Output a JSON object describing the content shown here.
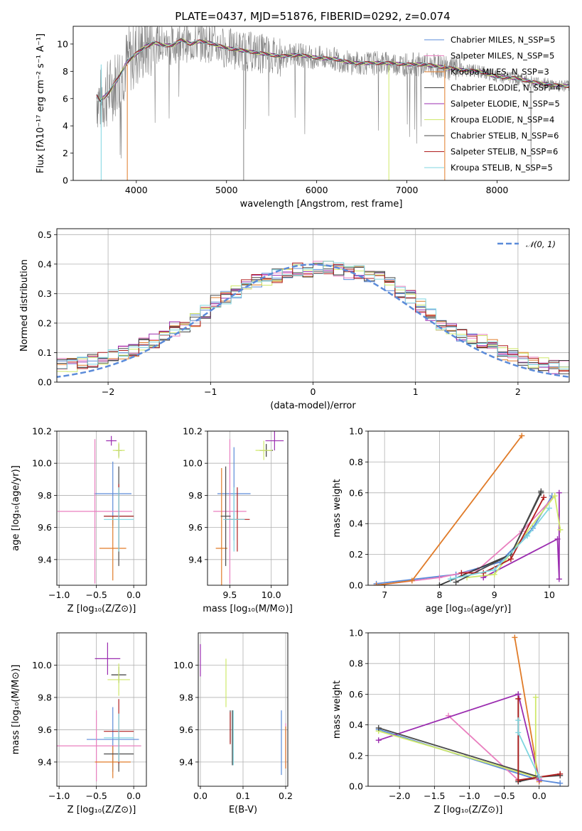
{
  "palette": {
    "Chabrier MILES": "#5b8bd9",
    "Salpeter MILES": "#e97fbf",
    "Kroupa MILES": "#e07b28",
    "Chabrier ELODIE": "#3a3a3a",
    "Salpeter ELODIE": "#9b2db0",
    "Kroupa ELODIE": "#cfe86a",
    "Chabrier STELIB": "#4a4a4a",
    "Salpeter STELIB": "#b01e1e",
    "Kroupa STELIB": "#7fd6e0"
  },
  "spectrum_color": "#808080",
  "normal_color": "#5b8bd9",
  "chart_data": [
    {
      "id": "spectrum",
      "type": "line",
      "title": "PLATE=0437, MJD=51876, FIBERID=0292, z=0.074",
      "xlabel": "wavelength [Angstrom, rest frame]",
      "ylabel": "Flux [fλ10⁻¹⁷ erg cm⁻² s⁻¹ A⁻¹]",
      "xlim": [
        3300,
        8800
      ],
      "ylim": [
        0,
        11.3
      ],
      "xticks": [
        4000,
        5000,
        6000,
        7000,
        8000
      ],
      "yticks": [
        0,
        2,
        4,
        6,
        8,
        10
      ],
      "grid": false,
      "legend_position": "top-right",
      "data_x": [
        3560,
        3600,
        3700,
        3800,
        3900,
        4000,
        4100,
        4200,
        4300,
        4400,
        4500,
        4600,
        4700,
        4800,
        4900,
        5000,
        5200,
        5400,
        5600,
        5800,
        6000,
        6200,
        6400,
        6600,
        6800,
        7000,
        7200,
        7400,
        7600,
        7800,
        8000,
        8200,
        8400,
        8600,
        8800
      ],
      "data_y": [
        6.2,
        5.8,
        6.5,
        7.5,
        8.7,
        9.3,
        9.8,
        10.1,
        9.9,
        9.9,
        10.3,
        10.0,
        10.2,
        10.1,
        9.9,
        9.7,
        9.5,
        9.3,
        9.1,
        9.2,
        9.0,
        8.9,
        8.6,
        8.6,
        8.6,
        8.5,
        8.5,
        8.3,
        8.1,
        8.0,
        7.6,
        7.5,
        7.2,
        7.0,
        6.9
      ],
      "legend": [
        "Chabrier MILES, N_SSP=5",
        "Salpeter MILES, N_SSP=5",
        "Kroupa MILES, N_SSP=3",
        "Chabrier ELODIE, N_SSP=4",
        "Salpeter ELODIE, N_SSP=5",
        "Kroupa ELODIE, N_SSP=4",
        "Chabrier STELIB, N_SSP=6",
        "Salpeter STELIB, N_SSP=6",
        "Kroupa STELIB, N_SSP=5"
      ]
    },
    {
      "id": "residuals",
      "type": "line",
      "xlabel": "(data-model)/error",
      "ylabel": "Normed distribution",
      "xlim": [
        -2.5,
        2.5
      ],
      "ylim": [
        0,
        0.52
      ],
      "xticks": [
        -2,
        -1,
        0,
        1,
        2
      ],
      "yticks": [
        0.0,
        0.1,
        0.2,
        0.3,
        0.4,
        0.5
      ],
      "grid": true,
      "legend_position": "top-right",
      "normal_label": "𝒩(0, 1)",
      "bin_width": 0.1,
      "hist_y": [
        0.02,
        0.03,
        0.04,
        0.05,
        0.06,
        0.06,
        0.06,
        0.06,
        0.07,
        0.08,
        0.09,
        0.1,
        0.11,
        0.13,
        0.14,
        0.16,
        0.18,
        0.19,
        0.21,
        0.24,
        0.27,
        0.29,
        0.31,
        0.33,
        0.34,
        0.35,
        0.36,
        0.37,
        0.38,
        0.38,
        0.39,
        0.39,
        0.38,
        0.37,
        0.37,
        0.36,
        0.35,
        0.33,
        0.31,
        0.29,
        0.26,
        0.23,
        0.2,
        0.18,
        0.16,
        0.15,
        0.14,
        0.12,
        0.1,
        0.09,
        0.08,
        0.07,
        0.06,
        0.05,
        0.05,
        0.04,
        0.03,
        0.03,
        0.02,
        0.02
      ]
    },
    {
      "id": "z-age",
      "type": "scatter",
      "xlabel": "Z [log₁₀(Z/Z⊙)]",
      "ylabel": "age  [log₁₀(age/yr)]",
      "xlim": [
        -1.03,
        0.17
      ],
      "ylim": [
        9.24,
        10.2
      ],
      "xticks": [
        -1.0,
        -0.5,
        0.0
      ],
      "yticks": [
        9.4,
        9.6,
        9.8,
        10.0,
        10.2
      ],
      "grid": true,
      "points": [
        {
          "model": "Chabrier MILES",
          "x": -0.28,
          "y": 9.81,
          "xerr": 0.25,
          "yerr": 0.2
        },
        {
          "model": "Salpeter MILES",
          "x": -0.52,
          "y": 9.7,
          "xerr": 0.5,
          "yerr": 0.45
        },
        {
          "model": "Kroupa MILES",
          "x": -0.28,
          "y": 9.47,
          "xerr": 0.18,
          "yerr": 0.2
        },
        {
          "model": "Chabrier ELODIE",
          "x": -0.2,
          "y": 10.08,
          "xerr": 0.04,
          "yerr": 0.04
        },
        {
          "model": "Salpeter ELODIE",
          "x": -0.3,
          "y": 10.14,
          "xerr": 0.07,
          "yerr": 0.03
        },
        {
          "model": "Kroupa ELODIE",
          "x": -0.2,
          "y": 10.08,
          "xerr": 0.08,
          "yerr": 0.05
        },
        {
          "model": "Chabrier STELIB",
          "x": -0.2,
          "y": 9.67,
          "xerr": 0.2,
          "yerr": 0.31
        },
        {
          "model": "Salpeter STELIB",
          "x": -0.2,
          "y": 9.67,
          "xerr": 0.2,
          "yerr": 0.2
        },
        {
          "model": "Kroupa STELIB",
          "x": -0.2,
          "y": 9.65,
          "xerr": 0.2,
          "yerr": 0.2
        }
      ]
    },
    {
      "id": "mass-age",
      "type": "scatter",
      "xlabel": "mass [log₁₀(M/M⊙)]",
      "ylabel": "",
      "xlim": [
        9.23,
        10.2
      ],
      "ylim": [
        9.24,
        10.2
      ],
      "xticks": [
        9.5,
        10.0
      ],
      "yticks": [
        9.4,
        9.6,
        9.8,
        10.0,
        10.2
      ],
      "grid": true,
      "points": [
        {
          "model": "Chabrier MILES",
          "x": 9.55,
          "y": 9.81,
          "xerr": 0.2,
          "yerr": 0.29
        },
        {
          "model": "Salpeter MILES",
          "x": 9.5,
          "y": 9.7,
          "xerr": 0.2,
          "yerr": 0.45
        },
        {
          "model": "Kroupa MILES",
          "x": 9.4,
          "y": 9.47,
          "xerr": 0.07,
          "yerr": 0.5
        },
        {
          "model": "Chabrier ELODIE",
          "x": 9.94,
          "y": 10.08,
          "xerr": 0.08,
          "yerr": 0.04
        },
        {
          "model": "Salpeter ELODIE",
          "x": 10.04,
          "y": 10.14,
          "xerr": 0.11,
          "yerr": 0.06
        },
        {
          "model": "Kroupa ELODIE",
          "x": 9.91,
          "y": 10.08,
          "xerr": 0.1,
          "yerr": 0.06
        },
        {
          "model": "Chabrier STELIB",
          "x": 9.45,
          "y": 9.67,
          "xerr": 0.06,
          "yerr": 0.31
        },
        {
          "model": "Salpeter STELIB",
          "x": 9.59,
          "y": 9.65,
          "xerr": 0.15,
          "yerr": 0.2
        },
        {
          "model": "Kroupa STELIB",
          "x": 9.55,
          "y": 9.65,
          "xerr": 0.13,
          "yerr": 0.2
        }
      ]
    },
    {
      "id": "age-weight",
      "type": "line",
      "xlabel": "age  [log₁₀(age/yr)]",
      "ylabel": "mass weight",
      "xlim": [
        6.7,
        10.35
      ],
      "ylim": [
        0,
        1.0
      ],
      "xticks": [
        7,
        8,
        9,
        10
      ],
      "yticks": [
        0.0,
        0.2,
        0.4,
        0.6,
        0.8,
        1.0
      ],
      "grid": true,
      "series": [
        {
          "model": "Chabrier MILES",
          "points": [
            [
              6.85,
              0.01
            ],
            [
              8.3,
              0.07
            ],
            [
              9.1,
              0.15
            ],
            [
              9.7,
              0.37
            ],
            [
              10.05,
              0.58
            ]
          ]
        },
        {
          "model": "Salpeter MILES",
          "points": [
            [
              6.85,
              0.0
            ],
            [
              8.0,
              0.05
            ],
            [
              8.7,
              0.1
            ],
            [
              9.5,
              0.35
            ],
            [
              10.1,
              0.58
            ]
          ]
        },
        {
          "model": "Kroupa MILES",
          "points": [
            [
              6.85,
              0.0
            ],
            [
              7.5,
              0.03
            ],
            [
              9.5,
              0.97
            ]
          ]
        },
        {
          "model": "Chabrier ELODIE",
          "points": [
            [
              8.0,
              0.0
            ],
            [
              9.3,
              0.2
            ],
            [
              9.85,
              0.6
            ]
          ]
        },
        {
          "model": "Salpeter ELODIE",
          "points": [
            [
              8.8,
              0.05
            ],
            [
              10.15,
              0.3
            ],
            [
              10.18,
              0.04
            ],
            [
              10.18,
              0.6
            ]
          ]
        },
        {
          "model": "Kroupa ELODIE",
          "points": [
            [
              8.5,
              0.05
            ],
            [
              9.0,
              0.07
            ],
            [
              10.1,
              0.58
            ],
            [
              10.2,
              0.36
            ]
          ]
        },
        {
          "model": "Chabrier STELIB",
          "points": [
            [
              8.3,
              0.02
            ],
            [
              9.3,
              0.2
            ],
            [
              9.85,
              0.61
            ]
          ]
        },
        {
          "model": "Salpeter STELIB",
          "points": [
            [
              8.4,
              0.08
            ],
            [
              8.8,
              0.08
            ],
            [
              9.3,
              0.17
            ],
            [
              9.9,
              0.57
            ]
          ]
        },
        {
          "model": "Kroupa STELIB",
          "points": [
            [
              8.2,
              0.04
            ],
            [
              9.0,
              0.1
            ],
            [
              9.6,
              0.32
            ],
            [
              10.0,
              0.5
            ]
          ]
        }
      ]
    },
    {
      "id": "z-mass",
      "type": "scatter",
      "xlabel": "Z [log₁₀(Z/Z⊙)]",
      "ylabel": "mass [log₁₀(M/M⊙)]",
      "xlim": [
        -1.03,
        0.17
      ],
      "ylim": [
        9.25,
        10.2
      ],
      "xticks": [
        -1.0,
        -0.5,
        0.0
      ],
      "yticks": [
        9.4,
        9.6,
        9.8,
        10.0
      ],
      "grid": true,
      "points": [
        {
          "model": "Chabrier MILES",
          "x": -0.28,
          "y": 9.54,
          "xerr": 0.35,
          "yerr": 0.2
        },
        {
          "model": "Salpeter MILES",
          "x": -0.5,
          "y": 9.5,
          "xerr": 0.6,
          "yerr": 0.22
        },
        {
          "model": "Kroupa MILES",
          "x": -0.28,
          "y": 9.4,
          "xerr": 0.24,
          "yerr": 0.1
        },
        {
          "model": "Chabrier ELODIE",
          "x": -0.2,
          "y": 9.94,
          "xerr": 0.1,
          "yerr": 0.05
        },
        {
          "model": "Salpeter ELODIE",
          "x": -0.35,
          "y": 10.04,
          "xerr": 0.17,
          "yerr": 0.1
        },
        {
          "model": "Kroupa ELODIE",
          "x": -0.2,
          "y": 9.91,
          "xerr": 0.15,
          "yerr": 0.1
        },
        {
          "model": "Chabrier STELIB",
          "x": -0.2,
          "y": 9.45,
          "xerr": 0.2,
          "yerr": 0.11
        },
        {
          "model": "Salpeter STELIB",
          "x": -0.2,
          "y": 9.59,
          "xerr": 0.2,
          "yerr": 0.2
        },
        {
          "model": "Kroupa STELIB",
          "x": -0.2,
          "y": 9.55,
          "xerr": 0.2,
          "yerr": 0.15
        }
      ]
    },
    {
      "id": "ebv-mass",
      "type": "scatter",
      "xlabel": "E(B-V)",
      "ylabel": "",
      "xlim": [
        -0.005,
        0.205
      ],
      "ylim": [
        9.25,
        10.2
      ],
      "xticks": [
        0.0,
        0.1,
        0.2
      ],
      "yticks": [
        9.4,
        9.6,
        9.8,
        10.0
      ],
      "grid": true,
      "points": [
        {
          "model": "Chabrier MILES",
          "x": 0.19,
          "y": 9.52,
          "xerr": 0.0,
          "yerr": 0.2
        },
        {
          "model": "Salpeter MILES",
          "x": 0.2,
          "y": 9.5,
          "xerr": 0.0,
          "yerr": 0.14
        },
        {
          "model": "Kroupa MILES",
          "x": 0.2,
          "y": 9.49,
          "xerr": 0.0,
          "yerr": 0.13
        },
        {
          "model": "Chabrier ELODIE",
          "x": 0.075,
          "y": 9.55,
          "xerr": 0.0,
          "yerr": 0.17
        },
        {
          "model": "Salpeter ELODIE",
          "x": 0.0,
          "y": 10.03,
          "xerr": 0.0,
          "yerr": 0.1
        },
        {
          "model": "Kroupa ELODIE",
          "x": 0.06,
          "y": 9.89,
          "xerr": 0.0,
          "yerr": 0.15
        },
        {
          "model": "Chabrier STELIB",
          "x": 0.07,
          "y": 9.62,
          "xerr": 0.0,
          "yerr": 0.1
        },
        {
          "model": "Salpeter STELIB",
          "x": 0.07,
          "y": 9.61,
          "xerr": 0.0,
          "yerr": 0.1
        },
        {
          "model": "Kroupa STELIB",
          "x": 0.077,
          "y": 9.55,
          "xerr": 0.0,
          "yerr": 0.17
        }
      ]
    },
    {
      "id": "z-weight",
      "type": "line",
      "xlabel": "Z [log₁₀(Z/Z⊙)]",
      "ylabel": "mass weight",
      "xlim": [
        -2.45,
        0.42
      ],
      "ylim": [
        0,
        1.0
      ],
      "xticks": [
        -2.0,
        -1.5,
        -1.0,
        -0.5,
        0.0
      ],
      "yticks": [
        0.0,
        0.2,
        0.4,
        0.6,
        0.8,
        1.0
      ],
      "grid": true,
      "series": [
        {
          "model": "Chabrier MILES",
          "points": [
            [
              -2.3,
              0.37
            ],
            [
              0.0,
              0.04
            ],
            [
              0.3,
              0.02
            ]
          ]
        },
        {
          "model": "Salpeter MILES",
          "points": [
            [
              -1.3,
              0.46
            ],
            [
              -0.3,
              0.04
            ],
            [
              0.0,
              0.05
            ]
          ]
        },
        {
          "model": "Kroupa MILES",
          "points": [
            [
              -0.35,
              0.97
            ],
            [
              0.0,
              0.03
            ]
          ]
        },
        {
          "model": "Chabrier ELODIE",
          "points": [
            [
              -0.3,
              0.6
            ],
            [
              -0.3,
              0.03
            ],
            [
              0.0,
              0.06
            ]
          ]
        },
        {
          "model": "Salpeter ELODIE",
          "points": [
            [
              -2.3,
              0.3
            ],
            [
              -0.3,
              0.6
            ],
            [
              0.0,
              0.04
            ]
          ]
        },
        {
          "model": "Kroupa ELODIE",
          "points": [
            [
              -2.3,
              0.36
            ],
            [
              -0.05,
              0.06
            ],
            [
              -0.05,
              0.58
            ]
          ]
        },
        {
          "model": "Chabrier STELIB",
          "points": [
            [
              -2.3,
              0.38
            ],
            [
              0.0,
              0.06
            ],
            [
              0.3,
              0.07
            ]
          ]
        },
        {
          "model": "Salpeter STELIB",
          "points": [
            [
              -0.3,
              0.57
            ],
            [
              -0.3,
              0.04
            ],
            [
              0.3,
              0.08
            ]
          ]
        },
        {
          "model": "Kroupa STELIB",
          "points": [
            [
              -0.3,
              0.43
            ],
            [
              -0.3,
              0.35
            ],
            [
              0.0,
              0.06
            ]
          ]
        }
      ]
    }
  ]
}
